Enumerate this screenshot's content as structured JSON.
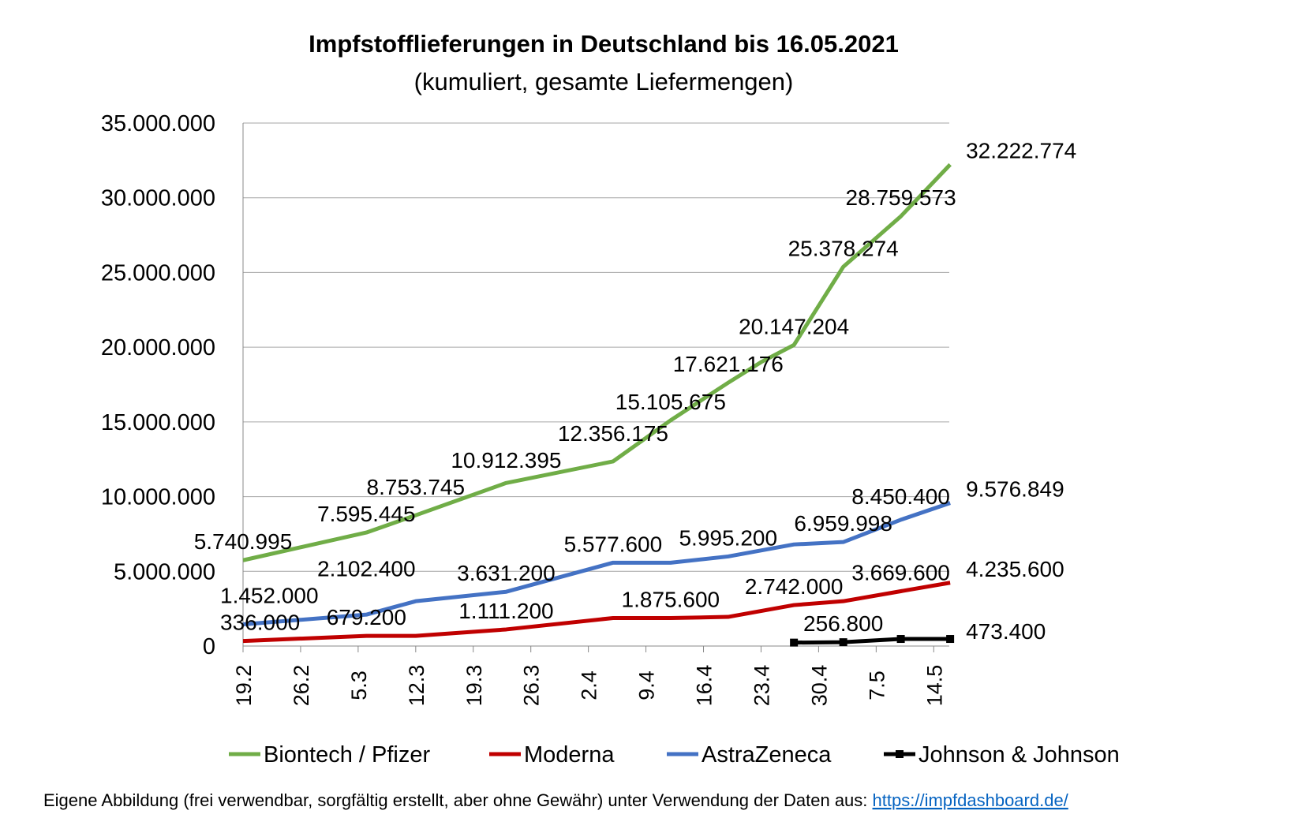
{
  "chart_data": {
    "type": "line",
    "title": "Impfstofflieferungen in Deutschland bis 16.05.2021",
    "subtitle": "(kumuliert, gesamte Liefermengen)",
    "xlabel": "",
    "ylabel": "",
    "ylim": [
      0,
      35000000
    ],
    "y_ticks": [
      "0",
      "5.000.000",
      "10.000.000",
      "15.000.000",
      "20.000.000",
      "25.000.000",
      "30.000.000",
      "35.000.000"
    ],
    "x_axis": "date",
    "x_ticks": [
      "19.2",
      "26.2",
      "5.3",
      "12.3",
      "19.3",
      "26.3",
      "2.4",
      "9.4",
      "16.4",
      "23.4",
      "30.4",
      "7.5",
      "14.5"
    ],
    "grid": true,
    "legend_position": "bottom",
    "series": [
      {
        "name": "Biontech / Pfizer",
        "color": "#70AD47",
        "points": [
          {
            "x": "2021-02-19",
            "y": 5740995,
            "label": "5.740.995"
          },
          {
            "x": "2021-03-06",
            "y": 7595445,
            "label": "7.595.445"
          },
          {
            "x": "2021-03-12",
            "y": 8753745,
            "label": "8.753.745"
          },
          {
            "x": "2021-03-23",
            "y": 10912395,
            "label": "10.912.395"
          },
          {
            "x": "2021-04-05",
            "y": 12356175,
            "label": "12.356.175"
          },
          {
            "x": "2021-04-12",
            "y": 15105675,
            "label": "15.105.675"
          },
          {
            "x": "2021-04-19",
            "y": 17621176,
            "label": "17.621.176"
          },
          {
            "x": "2021-04-23",
            "y": 19000000
          },
          {
            "x": "2021-04-27",
            "y": 20147204,
            "label": "20.147.204"
          },
          {
            "x": "2021-05-03",
            "y": 25378274,
            "label": "25.378.274"
          },
          {
            "x": "2021-05-10",
            "y": 28759573,
            "label": "28.759.573"
          },
          {
            "x": "2021-05-16",
            "y": 32222774,
            "label": "32.222.774",
            "label_side": "right"
          }
        ]
      },
      {
        "name": "Moderna",
        "color": "#C00000",
        "points": [
          {
            "x": "2021-02-19",
            "y": 336000,
            "label": "336.000"
          },
          {
            "x": "2021-03-06",
            "y": 679200,
            "label": "679.200"
          },
          {
            "x": "2021-03-12",
            "y": 679200
          },
          {
            "x": "2021-03-23",
            "y": 1111200,
            "label": "1.111.200"
          },
          {
            "x": "2021-04-05",
            "y": 1875600
          },
          {
            "x": "2021-04-12",
            "y": 1875600,
            "label": "1.875.600"
          },
          {
            "x": "2021-04-19",
            "y": 1950000
          },
          {
            "x": "2021-04-27",
            "y": 2742000,
            "label": "2.742.000"
          },
          {
            "x": "2021-05-03",
            "y": 3000000
          },
          {
            "x": "2021-05-10",
            "y": 3669600,
            "label": "3.669.600"
          },
          {
            "x": "2021-05-16",
            "y": 4235600,
            "label": "4.235.600",
            "label_side": "right"
          }
        ]
      },
      {
        "name": "AstraZeneca",
        "color": "#4472C4",
        "points": [
          {
            "x": "2021-02-19",
            "y": 1452000,
            "label": "1.452.000"
          },
          {
            "x": "2021-03-06",
            "y": 2102400,
            "label": "2.102.400"
          },
          {
            "x": "2021-03-12",
            "y": 3000000
          },
          {
            "x": "2021-03-23",
            "y": 3631200,
            "label": "3.631.200"
          },
          {
            "x": "2021-04-05",
            "y": 5577600,
            "label": "5.577.600"
          },
          {
            "x": "2021-04-12",
            "y": 5577600
          },
          {
            "x": "2021-04-19",
            "y": 5995200,
            "label": "5.995.200"
          },
          {
            "x": "2021-04-27",
            "y": 6800000
          },
          {
            "x": "2021-05-03",
            "y": 6959998,
            "label": "6.959.998"
          },
          {
            "x": "2021-05-10",
            "y": 8450400,
            "label": "8.450.400"
          },
          {
            "x": "2021-05-16",
            "y": 9576849,
            "label": "9.576.849",
            "label_side": "right"
          }
        ]
      },
      {
        "name": "Johnson & Johnson",
        "color": "#000000",
        "marker": "square",
        "points": [
          {
            "x": "2021-04-27",
            "y": 230000
          },
          {
            "x": "2021-05-03",
            "y": 256800,
            "label": "256.800"
          },
          {
            "x": "2021-05-10",
            "y": 473400
          },
          {
            "x": "2021-05-16",
            "y": 473400,
            "label": "473.400",
            "label_side": "right"
          }
        ]
      }
    ]
  },
  "footer": {
    "text": "Eigene Abbildung (frei verwendbar, sorgfältig erstellt, aber ohne Gewähr) unter Verwendung der Daten aus: ",
    "link": "https://impfdashboard.de/"
  }
}
